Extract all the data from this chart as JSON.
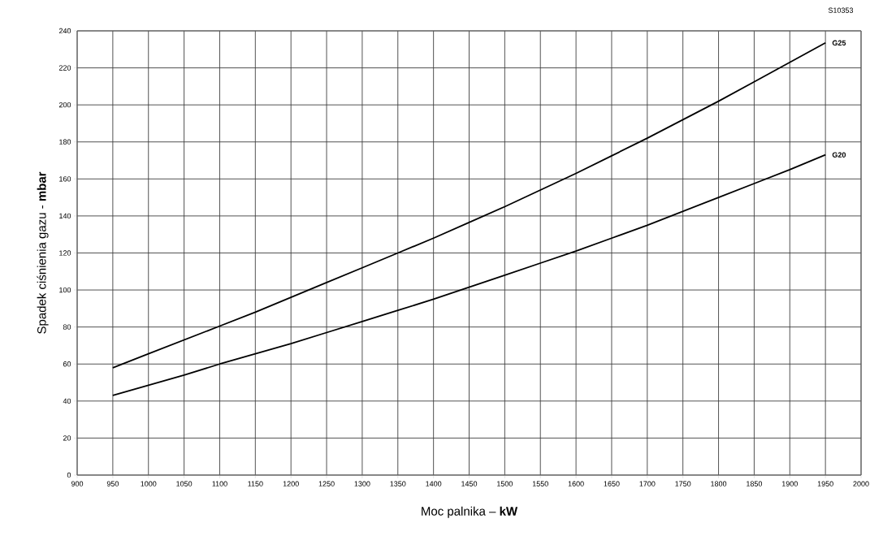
{
  "chart_data": {
    "type": "line",
    "annotations": [
      "S10353"
    ],
    "xlabel": "Moc palnika – **kW**",
    "ylabel": "Spadek ciśnienia gazu - **mbar**",
    "x": [
      950,
      1000,
      1050,
      1100,
      1150,
      1200,
      1250,
      1300,
      1350,
      1400,
      1450,
      1500,
      1550,
      1600,
      1650,
      1700,
      1750,
      1800,
      1850,
      1900,
      1950
    ],
    "series": [
      {
        "name": "G25",
        "color": "#000000",
        "values": [
          58,
          65.5,
          73,
          80.5,
          88,
          96,
          104,
          112,
          120,
          128,
          136.5,
          145,
          154,
          163,
          172.5,
          182,
          192,
          202,
          212.5,
          223,
          233.5
        ]
      },
      {
        "name": "G20",
        "color": "#000000",
        "values": [
          43,
          48.5,
          54,
          60,
          65.5,
          71,
          77,
          83,
          89,
          95,
          101.5,
          108,
          114.5,
          121,
          128,
          135,
          142.5,
          150,
          157.5,
          165,
          173
        ]
      }
    ],
    "xlim": [
      900,
      2000
    ],
    "ylim": [
      0,
      240
    ],
    "xticks": [
      900,
      950,
      1000,
      1050,
      1100,
      1150,
      1200,
      1250,
      1300,
      1350,
      1400,
      1450,
      1500,
      1550,
      1600,
      1650,
      1700,
      1750,
      1800,
      1850,
      1900,
      1950,
      2000
    ],
    "yticks": [
      0,
      20,
      40,
      60,
      80,
      100,
      120,
      140,
      160,
      180,
      200,
      220,
      240
    ],
    "grid": true
  }
}
